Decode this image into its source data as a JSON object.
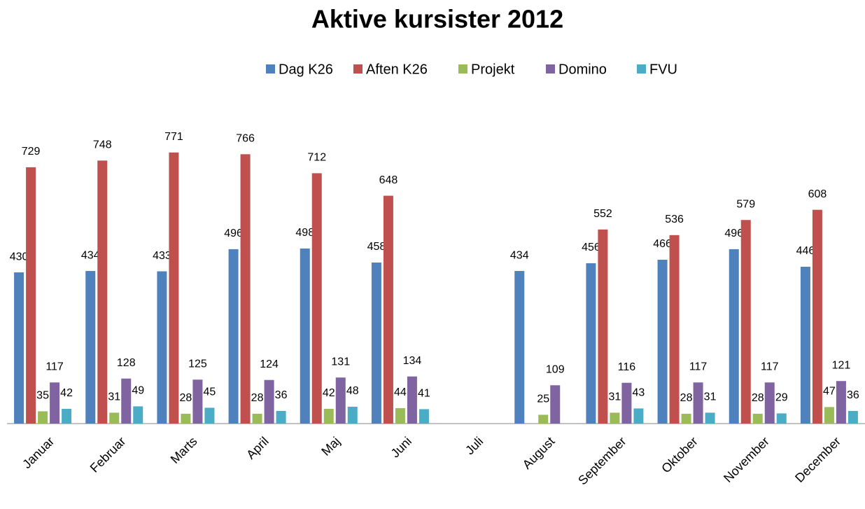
{
  "chart_data": {
    "type": "bar",
    "title": "Aktive kursister 2012",
    "categories": [
      "Januar",
      "Februar",
      "Marts",
      "April",
      "Maj",
      "Juni",
      "Juli",
      "August",
      "September",
      "Oktober",
      "November",
      "December"
    ],
    "series": [
      {
        "name": "Dag K26",
        "color": "#4f81bd",
        "values": [
          430,
          434,
          433,
          496,
          498,
          458,
          null,
          434,
          456,
          466,
          496,
          446
        ]
      },
      {
        "name": "Aften K26",
        "color": "#c0504d",
        "values": [
          729,
          748,
          771,
          766,
          712,
          648,
          null,
          null,
          552,
          536,
          579,
          608
        ]
      },
      {
        "name": "Projekt",
        "color": "#9bbb59",
        "values": [
          35,
          31,
          28,
          28,
          42,
          44,
          null,
          25,
          31,
          28,
          28,
          47
        ]
      },
      {
        "name": "Domino",
        "color": "#8064a2",
        "values": [
          117,
          128,
          125,
          124,
          131,
          134,
          null,
          109,
          116,
          117,
          117,
          121
        ]
      },
      {
        "name": "FVU",
        "color": "#4bacc6",
        "values": [
          42,
          49,
          45,
          36,
          48,
          41,
          null,
          null,
          43,
          31,
          29,
          36
        ]
      }
    ],
    "ylim": [
      0,
      900
    ],
    "legend": "top"
  }
}
